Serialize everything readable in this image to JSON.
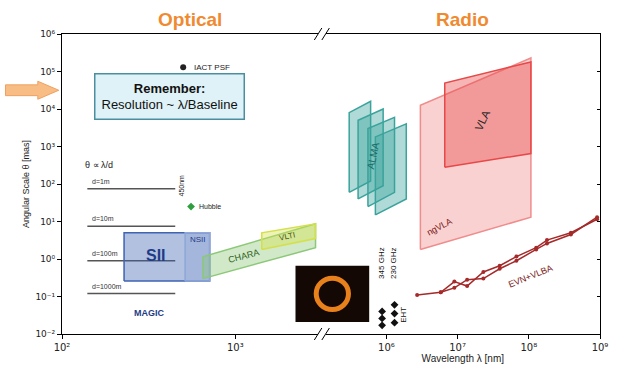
{
  "chart_data": [
    {
      "type": "scatter",
      "title": "Optical",
      "ylabel": "Angular Scale θ [mas]",
      "log": true,
      "grid": false,
      "xlim": [
        100,
        3000
      ],
      "xticks": [
        {
          "value": 100,
          "label": "10²"
        },
        {
          "value": 1000,
          "label": "10³"
        }
      ],
      "ylim": [
        0.01,
        1000000
      ],
      "yticks": [
        {
          "value": 0.01,
          "label": "10⁻²"
        },
        {
          "value": 0.1,
          "label": "10⁻¹"
        },
        {
          "value": 1,
          "label": "10⁰"
        },
        {
          "value": 10,
          "label": "10¹"
        },
        {
          "value": 100,
          "label": "10²"
        },
        {
          "value": 1000,
          "label": "10³"
        },
        {
          "value": 10000,
          "label": "10⁴"
        },
        {
          "value": 100000,
          "label": "10⁵"
        },
        {
          "value": 1000000,
          "label": "10⁶"
        }
      ],
      "annotations": [
        "Remember:",
        "Resolution ~ λ/Baseline",
        "θ ∝ λ/d",
        "450nm",
        "MAGIC"
      ],
      "series": [
        {
          "name": "IACT PSF",
          "type": "scatter",
          "marker": "circle",
          "color": "#222222",
          "x": [
            500
          ],
          "values": [
            130000
          ]
        },
        {
          "name": "d=1m",
          "type": "line",
          "line_style": "solid",
          "color": "#555555",
          "x": [
            140,
            450
          ],
          "values": [
            75,
            75
          ]
        },
        {
          "name": "d=10m",
          "type": "line",
          "line_style": "solid",
          "color": "#555555",
          "x": [
            140,
            450
          ],
          "values": [
            7.5,
            7.5
          ]
        },
        {
          "name": "d=100m",
          "type": "line",
          "line_style": "solid",
          "color": "#555555",
          "x": [
            140,
            450
          ],
          "values": [
            0.9,
            0.9
          ]
        },
        {
          "name": "d=1000m",
          "type": "line",
          "line_style": "solid",
          "color": "#555555",
          "x": [
            140,
            450
          ],
          "values": [
            0.12,
            0.12
          ]
        },
        {
          "name": "Hubble",
          "type": "scatter",
          "marker": "diamond",
          "color": "#2e9e3e",
          "x": [
            555
          ],
          "values": [
            25
          ]
        },
        {
          "name": "SII",
          "type": "area",
          "color": "#3f64b2",
          "x": [
            228,
            711,
            711,
            228,
            228
          ],
          "values": [
            0.26,
            0.26,
            5,
            5,
            0.26
          ]
        },
        {
          "name": "NSII",
          "type": "area",
          "color": "#8fa6d8",
          "x": [
            513,
            711,
            711,
            513,
            513
          ],
          "values": [
            0.26,
            0.26,
            5,
            5,
            0.26
          ]
        },
        {
          "name": "CHARA",
          "type": "area",
          "color": "#8cc878",
          "x": [
            650,
            2900,
            2900,
            650,
            650
          ],
          "values": [
            0.3,
            2,
            8.7,
            1.15,
            0.3
          ]
        },
        {
          "name": "VLTI",
          "type": "area",
          "color": "#d4e04a",
          "x": [
            1420,
            2900,
            2900,
            1420,
            1420
          ],
          "values": [
            1.8,
            3.5,
            8.7,
            5,
            1.8
          ]
        }
      ]
    },
    {
      "type": "scatter",
      "title": "Radio",
      "xlabel": "Wavelength λ [nm]",
      "log": true,
      "grid": false,
      "tick_labels": "x",
      "xlim": [
        140000,
        1000000000
      ],
      "xticks": [
        {
          "value": 1000000,
          "label": "10⁶"
        },
        {
          "value": 10000000,
          "label": "10⁷"
        },
        {
          "value": 100000000,
          "label": "10⁸"
        },
        {
          "value": 1000000000,
          "label": "10⁹"
        }
      ],
      "ylim": [
        0.01,
        1000000
      ],
      "yticks": [
        {
          "value": 0.01,
          "label": "10⁻²"
        },
        {
          "value": 0.1,
          "label": "10⁻¹"
        },
        {
          "value": 1,
          "label": "10⁰"
        },
        {
          "value": 10,
          "label": "10¹"
        },
        {
          "value": 100,
          "label": "10²"
        },
        {
          "value": 1000,
          "label": "10³"
        },
        {
          "value": 10000,
          "label": "10⁴"
        },
        {
          "value": 100000,
          "label": "10⁵"
        },
        {
          "value": 1000000,
          "label": "10⁶"
        }
      ],
      "annotations": [
        "345 GHz",
        "230 GHz"
      ],
      "series": [
        {
          "name": "ALMA",
          "type": "area",
          "color": "#3aa39c",
          "x": [
            300000,
            600000,
            600000,
            300000,
            300000
          ],
          "values": [
            60,
            120,
            16000,
            8000,
            60
          ]
        },
        {
          "type": "area",
          "color": "#3aa39c",
          "x": [
            400000,
            900000,
            900000,
            400000,
            400000
          ],
          "values": [
            40,
            90,
            10000,
            5000,
            40
          ]
        },
        {
          "type": "area",
          "color": "#3aa39c",
          "x": [
            550000,
            1300000,
            1300000,
            550000,
            550000
          ],
          "values": [
            25,
            60,
            6000,
            3000,
            25
          ]
        },
        {
          "type": "area",
          "color": "#3aa39c",
          "x": [
            700000,
            1900000,
            1900000,
            700000,
            700000
          ],
          "values": [
            15,
            40,
            4000,
            1800,
            15
          ]
        },
        {
          "name": "ngVLA",
          "type": "area",
          "color": "#f08c8c",
          "x": [
            3000000,
            107000000,
            107000000,
            3000000,
            3000000
          ],
          "values": [
            1.8,
            13,
            230000,
            12600,
            1.8
          ]
        },
        {
          "name": "VLA",
          "type": "area",
          "color": "#e84848",
          "x": [
            6600000,
            107000000,
            107000000,
            6600000,
            6600000
          ],
          "values": [
            280,
            650,
            180000,
            49000,
            280
          ]
        },
        {
          "name": "EVN+VLBA",
          "type": "line",
          "line_style": "solid",
          "marker": "circle",
          "color": "#a52a2a",
          "x": [
            2700000,
            5800000,
            9000000,
            13600000,
            23000000,
            39000000,
            67000000,
            127000000,
            180000000,
            390000000,
            910000000
          ],
          "values": [
            0.11,
            0.13,
            0.25,
            0.19,
            0.45,
            0.66,
            1.16,
            2,
            3.2,
            5,
            11.5
          ]
        },
        {
          "type": "line",
          "line_style": "solid",
          "marker": "circle",
          "color": "#a52a2a",
          "x": [
            5800000,
            9000000,
            13600000,
            23000000,
            39000000,
            67000000,
            127000000,
            180000000,
            390000000,
            910000000
          ],
          "values": [
            0.13,
            0.17,
            0.28,
            0.3,
            0.55,
            0.9,
            1.8,
            2.6,
            4.5,
            13
          ]
        },
        {
          "name": "EHT",
          "type": "scatter",
          "marker": "diamond",
          "color": "#111111",
          "x": [
            870000,
            870000,
            870000,
            1300000,
            1300000,
            1300000
          ],
          "values": [
            0.04,
            0.026,
            0.017,
            0.06,
            0.035,
            0.02
          ]
        }
      ]
    }
  ]
}
